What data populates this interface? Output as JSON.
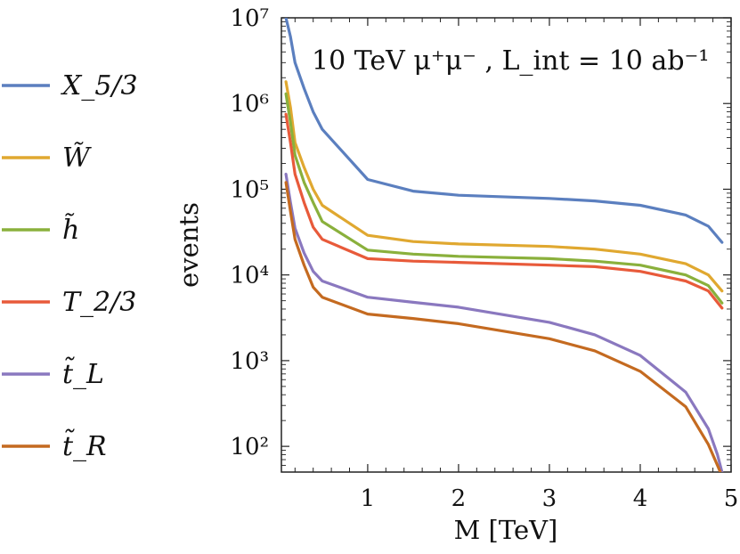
{
  "chart_data": {
    "type": "line",
    "title": "",
    "annotation": "10 TeV μ⁺μ⁻ ,  L_int = 10 ab⁻¹",
    "xlabel": "M [TeV]",
    "ylabel": "events",
    "xlim": [
      0.05,
      5.0
    ],
    "ylim_log10": [
      1.7,
      7.0
    ],
    "yscale": "log",
    "x_ticks": [
      1,
      2,
      3,
      4,
      5
    ],
    "x_tick_labels": [
      "1",
      "2",
      "3",
      "4",
      "5"
    ],
    "y_ticks_log10": [
      2,
      3,
      4,
      5,
      6,
      7
    ],
    "y_tick_labels": [
      "10²",
      "10³",
      "10⁴",
      "10⁵",
      "10⁶",
      "10⁷"
    ],
    "legend_position": "left-outside",
    "series": [
      {
        "name": "X_5/3",
        "color": "#5b7fbf",
        "x": [
          0.1,
          0.15,
          0.2,
          0.3,
          0.4,
          0.5,
          1.0,
          1.5,
          2.0,
          3.0,
          3.5,
          4.0,
          4.5,
          4.75,
          4.9
        ],
        "y": [
          10000000,
          6000000,
          3000000,
          1500000,
          800000,
          500000,
          130000,
          95000,
          85000,
          78000,
          73000,
          65000,
          50000,
          37000,
          24000
        ]
      },
      {
        "name": "W̃",
        "color": "#e0a830",
        "x": [
          0.1,
          0.15,
          0.2,
          0.3,
          0.4,
          0.5,
          1.0,
          1.5,
          2.0,
          3.0,
          3.5,
          4.0,
          4.5,
          4.75,
          4.9
        ],
        "y": [
          1800000,
          900000,
          350000,
          180000,
          100000,
          65000,
          29000,
          24500,
          23000,
          21500,
          20000,
          17500,
          13500,
          10000,
          6500
        ]
      },
      {
        "name": "h̃",
        "color": "#8ab03c",
        "x": [
          0.1,
          0.15,
          0.2,
          0.3,
          0.4,
          0.5,
          1.0,
          1.5,
          2.0,
          3.0,
          3.5,
          4.0,
          4.5,
          4.75,
          4.9
        ],
        "y": [
          1300000,
          600000,
          250000,
          120000,
          70000,
          42000,
          19500,
          17500,
          16500,
          15500,
          14500,
          13000,
          10000,
          7500,
          4700
        ]
      },
      {
        "name": "T_2/3",
        "color": "#e85a3a",
        "x": [
          0.1,
          0.15,
          0.2,
          0.3,
          0.4,
          0.5,
          1.0,
          1.5,
          2.0,
          3.0,
          3.5,
          4.0,
          4.5,
          4.75,
          4.9
        ],
        "y": [
          750000,
          350000,
          150000,
          70000,
          36000,
          26000,
          15500,
          14500,
          14000,
          13000,
          12500,
          11000,
          8500,
          6500,
          4100
        ]
      },
      {
        "name": "t̃_L",
        "color": "#8a78bf",
        "x": [
          0.1,
          0.15,
          0.2,
          0.3,
          0.4,
          0.5,
          1.0,
          1.5,
          2.0,
          3.0,
          3.5,
          4.0,
          4.5,
          4.75,
          4.85,
          4.9
        ],
        "y": [
          150000,
          70000,
          35000,
          18000,
          11000,
          8500,
          5500,
          4800,
          4200,
          2800,
          2000,
          1150,
          430,
          160,
          80,
          50
        ]
      },
      {
        "name": "t̃_R",
        "color": "#c46a20",
        "x": [
          0.1,
          0.15,
          0.2,
          0.3,
          0.4,
          0.5,
          1.0,
          1.5,
          2.0,
          3.0,
          3.5,
          4.0,
          4.5,
          4.75,
          4.85,
          4.9
        ],
        "y": [
          120000,
          55000,
          26000,
          13000,
          7200,
          5500,
          3500,
          3100,
          2700,
          1800,
          1300,
          750,
          290,
          105,
          60,
          45
        ]
      }
    ]
  }
}
